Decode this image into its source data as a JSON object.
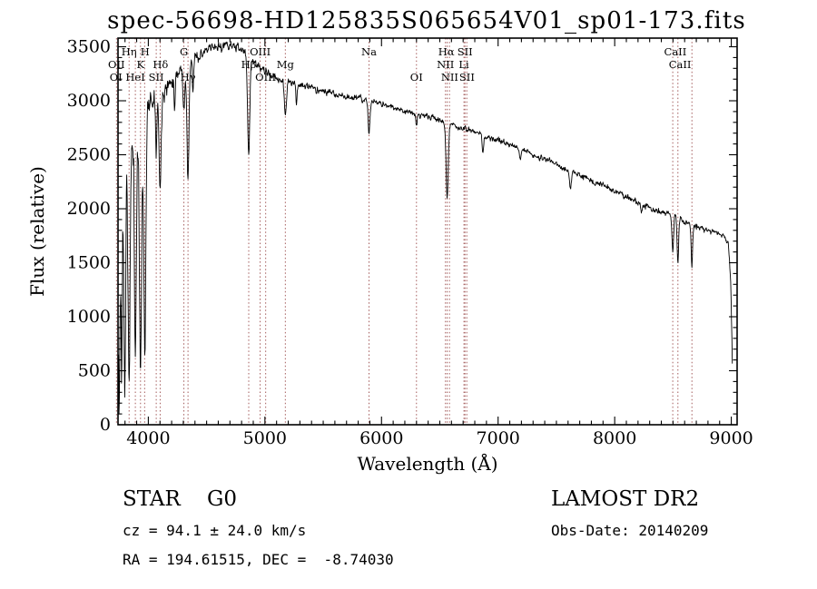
{
  "chart_data": {
    "type": "line",
    "title": "spec-56698-HD125835S065654V01_sp01-173.fits",
    "xlabel": "Wavelength (Å)",
    "ylabel": "Flux (relative)",
    "xlim": [
      3740,
      9050
    ],
    "ylim": [
      0,
      3580
    ],
    "xticks": [
      4000,
      5000,
      6000,
      7000,
      8000,
      9000
    ],
    "yticks": [
      0,
      500,
      1000,
      1500,
      2000,
      2500,
      3000,
      3500
    ],
    "x_minor_step": 100,
    "y_minor_step": 100,
    "grid": false,
    "legend": "none",
    "colors": {
      "trace": "#000000",
      "marker": "#9a4a4a",
      "frame": "#000000",
      "label_text": "#111111"
    },
    "spectrum": {
      "range": [
        3745,
        9012
      ],
      "step": 3.5,
      "seed": 11,
      "continuum_points": [
        [
          3745,
          2050
        ],
        [
          3762,
          2160
        ],
        [
          3780,
          2260
        ],
        [
          3810,
          2360
        ],
        [
          3840,
          2540
        ],
        [
          3870,
          2600
        ],
        [
          3900,
          2700
        ],
        [
          3940,
          2820
        ],
        [
          3980,
          2920
        ],
        [
          4020,
          3000
        ],
        [
          4080,
          3060
        ],
        [
          4160,
          3130
        ],
        [
          4240,
          3260
        ],
        [
          4320,
          3330
        ],
        [
          4400,
          3400
        ],
        [
          4480,
          3450
        ],
        [
          4560,
          3490
        ],
        [
          4640,
          3510
        ],
        [
          4720,
          3515
        ],
        [
          4800,
          3470
        ],
        [
          4880,
          3390
        ],
        [
          4960,
          3300
        ],
        [
          5040,
          3240
        ],
        [
          5120,
          3200
        ],
        [
          5200,
          3175
        ],
        [
          5300,
          3150
        ],
        [
          5400,
          3120
        ],
        [
          5500,
          3090
        ],
        [
          5600,
          3060
        ],
        [
          5700,
          3040
        ],
        [
          5800,
          3020
        ],
        [
          5900,
          3000
        ],
        [
          6000,
          2970
        ],
        [
          6100,
          2940
        ],
        [
          6200,
          2910
        ],
        [
          6300,
          2880
        ],
        [
          6400,
          2850
        ],
        [
          6500,
          2820
        ],
        [
          6600,
          2780
        ],
        [
          6700,
          2740
        ],
        [
          6800,
          2710
        ],
        [
          6900,
          2670
        ],
        [
          7000,
          2630
        ],
        [
          7100,
          2590
        ],
        [
          7200,
          2550
        ],
        [
          7300,
          2500
        ],
        [
          7400,
          2460
        ],
        [
          7500,
          2410
        ],
        [
          7600,
          2360
        ],
        [
          7700,
          2310
        ],
        [
          7800,
          2260
        ],
        [
          7900,
          2210
        ],
        [
          8000,
          2160
        ],
        [
          8100,
          2110
        ],
        [
          8200,
          2060
        ],
        [
          8300,
          2010
        ],
        [
          8400,
          1970
        ],
        [
          8500,
          1930
        ],
        [
          8600,
          1880
        ],
        [
          8700,
          1840
        ],
        [
          8800,
          1800
        ],
        [
          8880,
          1770
        ],
        [
          8940,
          1750
        ],
        [
          8975,
          1690
        ],
        [
          8995,
          1320
        ],
        [
          9005,
          820
        ],
        [
          9012,
          380
        ]
      ],
      "absorption_lines": [
        {
          "wl": 3727,
          "depth": 950,
          "sigma": 6
        },
        {
          "wl": 3750,
          "depth": 2050,
          "sigma": 6
        },
        {
          "wl": 3771,
          "depth": 1750,
          "sigma": 6
        },
        {
          "wl": 3798,
          "depth": 2000,
          "sigma": 7
        },
        {
          "wl": 3835,
          "depth": 2250,
          "sigma": 8
        },
        {
          "wl": 3889,
          "depth": 1950,
          "sigma": 8
        },
        {
          "wl": 3933,
          "depth": 2350,
          "sigma": 9
        },
        {
          "wl": 3970,
          "depth": 2150,
          "sigma": 9
        },
        {
          "wl": 4068,
          "depth": 450,
          "sigma": 5
        },
        {
          "wl": 4101,
          "depth": 880,
          "sigma": 9
        },
        {
          "wl": 4226,
          "depth": 300,
          "sigma": 5
        },
        {
          "wl": 4305,
          "depth": 380,
          "sigma": 8
        },
        {
          "wl": 4340,
          "depth": 1060,
          "sigma": 9
        },
        {
          "wl": 4383,
          "depth": 300,
          "sigma": 5
        },
        {
          "wl": 4861,
          "depth": 920,
          "sigma": 9
        },
        {
          "wl": 5175,
          "depth": 320,
          "sigma": 9
        },
        {
          "wl": 5270,
          "depth": 200,
          "sigma": 5
        },
        {
          "wl": 5893,
          "depth": 300,
          "sigma": 8
        },
        {
          "wl": 6300,
          "depth": 130,
          "sigma": 5
        },
        {
          "wl": 6563,
          "depth": 710,
          "sigma": 9
        },
        {
          "wl": 6870,
          "depth": 140,
          "sigma": 7
        },
        {
          "wl": 7190,
          "depth": 90,
          "sigma": 8
        },
        {
          "wl": 7620,
          "depth": 150,
          "sigma": 9
        },
        {
          "wl": 8230,
          "depth": 100,
          "sigma": 7
        },
        {
          "wl": 8498,
          "depth": 360,
          "sigma": 6
        },
        {
          "wl": 8542,
          "depth": 420,
          "sigma": 6
        },
        {
          "wl": 8662,
          "depth": 370,
          "sigma": 6
        }
      ],
      "noise_profile": [
        [
          3745,
          240
        ],
        [
          3800,
          220
        ],
        [
          3860,
          180
        ],
        [
          3920,
          140
        ],
        [
          4000,
          95
        ],
        [
          4100,
          65
        ],
        [
          4250,
          48
        ],
        [
          4500,
          38
        ],
        [
          4800,
          30
        ],
        [
          5200,
          26
        ],
        [
          5800,
          24
        ],
        [
          6300,
          22
        ],
        [
          6800,
          20
        ],
        [
          7300,
          19
        ],
        [
          7800,
          21
        ],
        [
          8300,
          23
        ],
        [
          8700,
          25
        ],
        [
          9012,
          18
        ]
      ]
    },
    "spectral_line_markers": [
      3727,
      3835,
      3889,
      3933,
      3968,
      4068,
      4101,
      4305,
      4340,
      4861,
      4959,
      5007,
      5175,
      5893,
      6300,
      6548,
      6563,
      6583,
      6707,
      6716,
      6731,
      8498,
      8542,
      8662
    ],
    "line_labels": [
      {
        "text": "Hη",
        "wl": 3835,
        "row": 1
      },
      {
        "text": "H",
        "wl": 3972,
        "row": 1
      },
      {
        "text": "G",
        "wl": 4305,
        "row": 1
      },
      {
        "text": "OIII",
        "wl": 4959,
        "row": 1
      },
      {
        "text": "Na",
        "wl": 5893,
        "row": 1
      },
      {
        "text": "Hα",
        "wl": 6556,
        "row": 1
      },
      {
        "text": "SII",
        "wl": 6716,
        "row": 1
      },
      {
        "text": "CaII",
        "wl": 8520,
        "row": 1
      },
      {
        "text": "OII",
        "wl": 3727,
        "row": 2
      },
      {
        "text": "K",
        "wl": 3933,
        "row": 2
      },
      {
        "text": "Hδ",
        "wl": 4104,
        "row": 2
      },
      {
        "text": "Hβ",
        "wl": 4861,
        "row": 2
      },
      {
        "text": "Mg",
        "wl": 5175,
        "row": 2
      },
      {
        "text": "NII",
        "wl": 6548,
        "row": 2
      },
      {
        "text": "Li",
        "wl": 6707,
        "row": 2
      },
      {
        "text": "CaII",
        "wl": 8560,
        "row": 2
      },
      {
        "text": "OI",
        "wl": 3722,
        "row": 3
      },
      {
        "text": "HeI",
        "wl": 3889,
        "row": 3
      },
      {
        "text": "SII",
        "wl": 4068,
        "row": 3
      },
      {
        "text": "Hγ",
        "wl": 4340,
        "row": 3
      },
      {
        "text": "OIII",
        "wl": 5007,
        "row": 3
      },
      {
        "text": "OI",
        "wl": 6300,
        "row": 3
      },
      {
        "text": "NII",
        "wl": 6585,
        "row": 3
      },
      {
        "text": "SII",
        "wl": 6733,
        "row": 3
      }
    ]
  },
  "footer": {
    "classification": "STAR",
    "subclass": "G0",
    "survey": "LAMOST DR2",
    "cz": "cz = 94.1 ± 24.0 km/s",
    "obs_date": "Obs-Date: 20140209",
    "ra_dec": "RA = 194.61515, DEC =  -8.74030"
  }
}
